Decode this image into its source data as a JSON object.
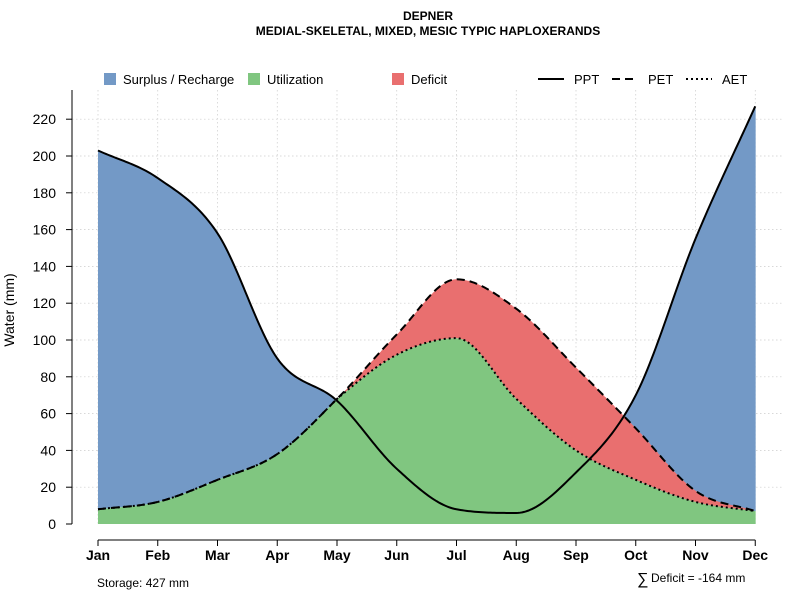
{
  "chart_data": {
    "type": "area",
    "title": "DEPNER",
    "subtitle": "MEDIAL-SKELETAL, MIXED, MESIC TYPIC HAPLOXERANDS",
    "xlabel": "",
    "ylabel": "Water (mm)",
    "ylim": [
      0,
      230
    ],
    "yticks": [
      0,
      20,
      40,
      60,
      80,
      100,
      120,
      140,
      160,
      180,
      200,
      220
    ],
    "categories": [
      "Jan",
      "Feb",
      "Mar",
      "Apr",
      "May",
      "Jun",
      "Jul",
      "Aug",
      "Sep",
      "Oct",
      "Nov",
      "Dec"
    ],
    "series": [
      {
        "name": "PPT",
        "style": "solid",
        "values": [
          203,
          188,
          158,
          90,
          67,
          30,
          8,
          6,
          28,
          70,
          155,
          227
        ]
      },
      {
        "name": "PET",
        "style": "dashed",
        "values": [
          8,
          12,
          24,
          38,
          68,
          103,
          133,
          117,
          85,
          52,
          18,
          7
        ]
      },
      {
        "name": "AET",
        "style": "dotted",
        "values": [
          8,
          12,
          24,
          38,
          68,
          92,
          101,
          68,
          40,
          24,
          12,
          7
        ]
      }
    ],
    "legend": [
      {
        "label": "Surplus / Recharge",
        "kind": "fill",
        "color": "#7399C6"
      },
      {
        "label": "Utilization",
        "kind": "fill",
        "color": "#80C680"
      },
      {
        "label": "Deficit",
        "kind": "fill",
        "color": "#E96F6F"
      },
      {
        "label": "PPT",
        "kind": "line",
        "style": "solid"
      },
      {
        "label": "PET",
        "kind": "line",
        "style": "dashed"
      },
      {
        "label": "AET",
        "kind": "line",
        "style": "dotted"
      }
    ],
    "legend_position": "top",
    "colors": {
      "surplus": "#7399C6",
      "utilization": "#80C680",
      "deficit": "#E96F6F",
      "grid": "#cccccc"
    },
    "grid": true,
    "annotations": {
      "storage": "Storage: 427 mm",
      "deficit_symbol": "∑",
      "deficit": "Deficit = -164 mm"
    }
  }
}
